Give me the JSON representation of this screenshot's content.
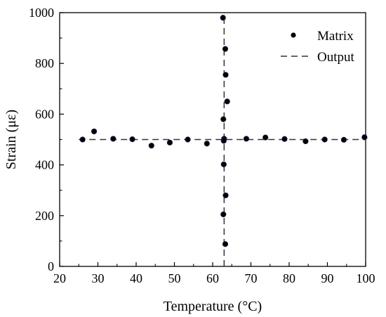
{
  "chart_data": {
    "type": "scatter",
    "xlabel": "Temperature (°C)",
    "ylabel": "Strain (με)",
    "xlim": [
      20,
      100
    ],
    "ylim": [
      0,
      1000
    ],
    "xticks": [
      20,
      30,
      40,
      50,
      60,
      70,
      80,
      90,
      100
    ],
    "yticks": [
      0,
      200,
      400,
      600,
      800,
      1000
    ],
    "grid": false,
    "legend_position": "top-right",
    "series": [
      {
        "name": "Matrix",
        "kind": "scatter",
        "marker": "circle",
        "color": "#000000",
        "edge_color": "#1a1f4d",
        "points": [
          {
            "x": 26,
            "y": 500
          },
          {
            "x": 29,
            "y": 532
          },
          {
            "x": 34,
            "y": 503
          },
          {
            "x": 39,
            "y": 501
          },
          {
            "x": 44,
            "y": 476
          },
          {
            "x": 48.8,
            "y": 488
          },
          {
            "x": 53.5,
            "y": 500
          },
          {
            "x": 58.5,
            "y": 484
          },
          {
            "x": 62.7,
            "y": 980
          },
          {
            "x": 63.3,
            "y": 857
          },
          {
            "x": 63.4,
            "y": 755
          },
          {
            "x": 63.8,
            "y": 650
          },
          {
            "x": 62.8,
            "y": 580
          },
          {
            "x": 63,
            "y": 503
          },
          {
            "x": 62.9,
            "y": 495
          },
          {
            "x": 62.9,
            "y": 402
          },
          {
            "x": 63.4,
            "y": 280
          },
          {
            "x": 62.8,
            "y": 205
          },
          {
            "x": 63.3,
            "y": 88
          },
          {
            "x": 68.8,
            "y": 503
          },
          {
            "x": 73.8,
            "y": 508
          },
          {
            "x": 78.8,
            "y": 502
          },
          {
            "x": 84.3,
            "y": 493
          },
          {
            "x": 89.3,
            "y": 500
          },
          {
            "x": 94.3,
            "y": 499
          },
          {
            "x": 99.7,
            "y": 509
          }
        ]
      },
      {
        "name": "Output",
        "kind": "dashed-lines",
        "color": "#333333",
        "lines": [
          {
            "x": [
              25,
              100
            ],
            "y": [
              500,
              500
            ]
          },
          {
            "x": [
              63,
              63
            ],
            "y": [
              0,
              1000
            ]
          }
        ]
      }
    ]
  }
}
